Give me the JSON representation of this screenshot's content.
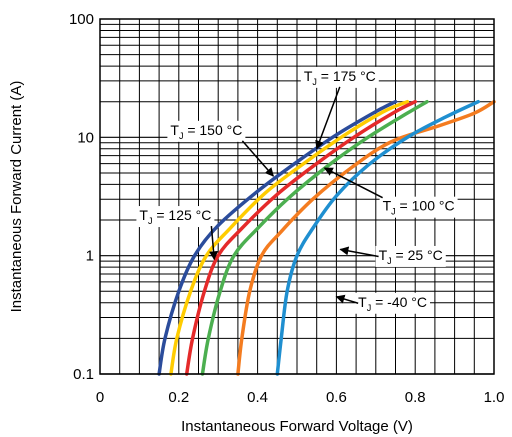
{
  "chart_data": {
    "type": "line",
    "xlabel": "Instantaneous Forward Voltage (V)",
    "ylabel": "Instantaneous Forward Current (A)",
    "x_scale": "linear",
    "y_scale": "log",
    "xlim": [
      0,
      1.0
    ],
    "ylim": [
      0.1,
      100
    ],
    "x_ticks": [
      0,
      0.2,
      0.4,
      0.6,
      0.8,
      1.0
    ],
    "x_tick_labels": [
      "0",
      "0.2",
      "0.4",
      "0.6",
      "0.8",
      "1.0"
    ],
    "y_ticks": [
      0.1,
      1,
      10,
      100
    ],
    "y_tick_labels": [
      "0.1",
      "1",
      "10",
      "100"
    ],
    "grid": true,
    "series": [
      {
        "name": "T_J = 175 °C",
        "label_main": "T",
        "label_sub": "J",
        "label_value": " = 175 °C",
        "color": "#2b4c9b",
        "x": [
          0.15,
          0.165,
          0.2,
          0.24,
          0.3,
          0.4,
          0.5,
          0.6,
          0.7,
          0.75
        ],
        "y": [
          0.1,
          0.2,
          0.5,
          1.0,
          1.8,
          3.5,
          6.2,
          10.5,
          16.5,
          20
        ]
      },
      {
        "name": "T_J = 150 °C",
        "label_main": "T",
        "label_sub": "J",
        "label_value": " = 150 °C",
        "color": "#ffcc00",
        "x": [
          0.18,
          0.195,
          0.23,
          0.27,
          0.33,
          0.42,
          0.52,
          0.62,
          0.72,
          0.78
        ],
        "y": [
          0.1,
          0.2,
          0.5,
          1.0,
          1.7,
          3.4,
          6.1,
          10.4,
          16.5,
          20
        ]
      },
      {
        "name": "T_J = 125 °C",
        "label_main": "T",
        "label_sub": "J",
        "label_value": " = 125 °C",
        "color": "#e52a2a",
        "x": [
          0.22,
          0.235,
          0.265,
          0.3,
          0.36,
          0.45,
          0.55,
          0.65,
          0.75,
          0.8
        ],
        "y": [
          0.1,
          0.2,
          0.5,
          1.0,
          1.7,
          3.3,
          6.0,
          10.3,
          16.5,
          20
        ]
      },
      {
        "name": "T_J = 100 °C",
        "label_main": "T",
        "label_sub": "J",
        "label_value": " = 100 °C",
        "color": "#4caf50",
        "x": [
          0.26,
          0.275,
          0.305,
          0.34,
          0.4,
          0.48,
          0.58,
          0.68,
          0.78,
          0.83
        ],
        "y": [
          0.1,
          0.2,
          0.5,
          1.0,
          1.7,
          3.1,
          5.8,
          10.0,
          16.0,
          20
        ]
      },
      {
        "name": "T_J = 25 °C",
        "label_main": "T",
        "label_sub": "J",
        "label_value": " = 25 °C",
        "color": "#f47c20",
        "x": [
          0.35,
          0.36,
          0.38,
          0.41,
          0.46,
          0.54,
          0.64,
          0.74,
          0.86,
          0.95,
          1.0
        ],
        "y": [
          0.1,
          0.2,
          0.5,
          1.0,
          1.6,
          3.0,
          5.6,
          9.2,
          12.5,
          16.0,
          20
        ]
      },
      {
        "name": "T_J = -40 °C",
        "label_main": "T",
        "label_sub": "J",
        "label_value": " = -40 °C",
        "color": "#1f8fd0",
        "x": [
          0.45,
          0.46,
          0.475,
          0.5,
          0.54,
          0.6,
          0.68,
          0.78,
          0.88,
          0.96
        ],
        "y": [
          0.1,
          0.2,
          0.5,
          1.0,
          1.7,
          3.2,
          5.8,
          10.0,
          15.0,
          20
        ]
      }
    ],
    "annotations": [
      {
        "series": 0,
        "text_x": 0.7,
        "text_y": 30,
        "anchor": "end",
        "point_x": 0.55,
        "point_y": 8.0
      },
      {
        "series": 1,
        "text_x": 0.27,
        "text_y": 10.5,
        "anchor": "middle",
        "point_x": 0.44,
        "point_y": 4.7
      },
      {
        "series": 2,
        "text_x": 0.1,
        "text_y": 2.0,
        "anchor": "start",
        "point_x": 0.29,
        "point_y": 0.93
      },
      {
        "series": 3,
        "text_x": 0.9,
        "text_y": 2.4,
        "anchor": "end",
        "point_x": 0.57,
        "point_y": 5.5
      },
      {
        "series": 4,
        "text_x": 0.87,
        "text_y": 0.92,
        "anchor": "end",
        "point_x": 0.61,
        "point_y": 1.13
      },
      {
        "series": 5,
        "text_x": 0.83,
        "text_y": 0.37,
        "anchor": "end",
        "point_x": 0.6,
        "point_y": 0.45
      }
    ]
  }
}
